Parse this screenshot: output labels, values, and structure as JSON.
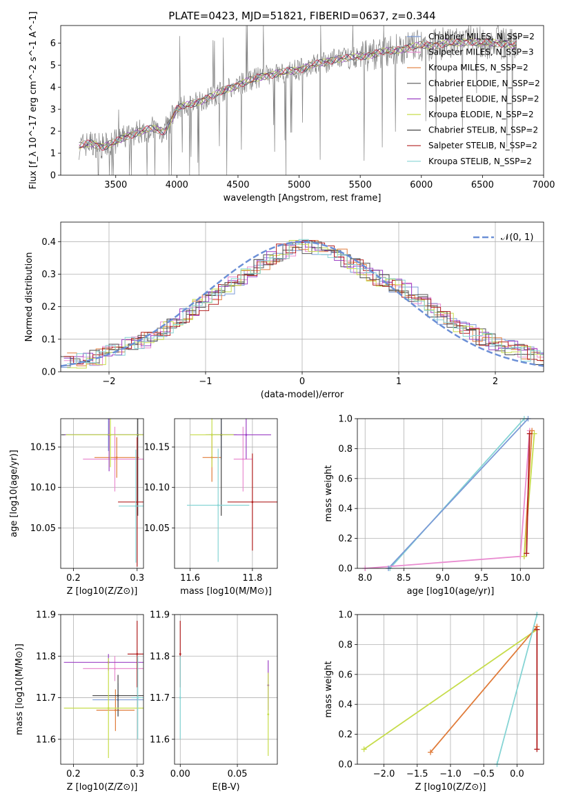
{
  "title": "PLATE=0423, MJD=51821, FIBERID=0637, z=0.344",
  "colors": {
    "chabrier_miles": "#7a9ad6",
    "salpeter_miles": "#e98bd0",
    "kroupa_miles": "#e07b39",
    "chabrier_elodie": "#555555",
    "salpeter_elodie": "#9b3fc4",
    "kroupa_elodie": "#c6dc4a",
    "chabrier_stelib": "#444444",
    "salpeter_stelib": "#b22020",
    "kroupa_stelib": "#85d4d4",
    "gauss": "#6b8fd6",
    "data": "#808080"
  },
  "chart_data": [
    {
      "type": "line",
      "xlabel": "wavelength [Angstrom, rest frame]",
      "ylabel": "Flux [f_λ 10^-17 erg cm^-2 s^-1 A^-1]",
      "xlim": [
        3050,
        7000
      ],
      "ylim": [
        0,
        6.8
      ],
      "xticks": [
        "3500",
        "4000",
        "4500",
        "5000",
        "5500",
        "6000",
        "6500",
        "7000"
      ],
      "yticks": [
        "0",
        "1",
        "2",
        "3",
        "4",
        "5",
        "6"
      ],
      "legend_position": "top-right",
      "legend": [
        {
          "label": "Chabrier MILES, N_SSP=2",
          "color": "#7a9ad6"
        },
        {
          "label": "Salpeter MILES, N_SSP=3",
          "color": "#e98bd0"
        },
        {
          "label": "Kroupa MILES, N_SSP=2",
          "color": "#e07b39"
        },
        {
          "label": "Chabrier ELODIE, N_SSP=2",
          "color": "#555555"
        },
        {
          "label": "Salpeter ELODIE, N_SSP=2",
          "color": "#9b3fc4"
        },
        {
          "label": "Kroupa ELODIE, N_SSP=2",
          "color": "#c6dc4a"
        },
        {
          "label": "Chabrier STELIB, N_SSP=2",
          "color": "#444444"
        },
        {
          "label": "Salpeter STELIB, N_SSP=2",
          "color": "#b22020"
        },
        {
          "label": "Kroupa STELIB, N_SSP=2",
          "color": "#85d4d4"
        }
      ],
      "model_continuum": {
        "x": [
          3200,
          3250,
          3300,
          3400,
          3500,
          3600,
          3700,
          3800,
          3900,
          4000,
          4100,
          4200,
          4300,
          4400,
          4500,
          4600,
          4700,
          4800,
          4900,
          5000,
          5100,
          5200,
          5300,
          5400,
          5500,
          5600,
          5700,
          5800,
          5900,
          6000,
          6100,
          6200,
          6300,
          6400,
          6500,
          6600,
          6700,
          6750
        ],
        "y": [
          1.3,
          1.4,
          1.45,
          1.3,
          1.5,
          1.8,
          2.0,
          2.1,
          2.0,
          3.0,
          3.2,
          3.4,
          3.6,
          3.9,
          4.1,
          4.3,
          4.5,
          4.6,
          4.7,
          4.8,
          5.0,
          5.1,
          5.3,
          5.3,
          5.4,
          5.5,
          5.6,
          5.7,
          5.8,
          5.9,
          5.9,
          6.0,
          6.0,
          6.1,
          6.0,
          6.0,
          6.0,
          5.9
        ]
      },
      "grid": false
    },
    {
      "type": "line",
      "xlabel": "(data-model)/error",
      "ylabel": "Normed distribution",
      "xlim": [
        -2.5,
        2.5
      ],
      "ylim": [
        0,
        0.46
      ],
      "xticks": [
        "−2",
        "−1",
        "0",
        "1",
        "2"
      ],
      "yticks": [
        "0.0",
        "0.1",
        "0.2",
        "0.3",
        "0.4"
      ],
      "legend_position": "top-right",
      "legend": [
        {
          "label": "𝒩(0, 1)",
          "color": "#6b8fd6",
          "style": "dashed"
        }
      ],
      "histogram_envelope": {
        "x": [
          -2.5,
          -2.3,
          -2.1,
          -1.9,
          -1.7,
          -1.5,
          -1.3,
          -1.1,
          -0.9,
          -0.7,
          -0.5,
          -0.3,
          -0.1,
          0.1,
          0.3,
          0.5,
          0.7,
          0.9,
          1.1,
          1.3,
          1.5,
          1.7,
          1.9,
          2.1,
          2.3,
          2.5
        ],
        "y": [
          0.04,
          0.035,
          0.045,
          0.07,
          0.09,
          0.11,
          0.16,
          0.2,
          0.23,
          0.27,
          0.31,
          0.36,
          0.38,
          0.39,
          0.37,
          0.34,
          0.3,
          0.27,
          0.25,
          0.2,
          0.16,
          0.13,
          0.1,
          0.08,
          0.055,
          0.04
        ]
      },
      "grid": true
    },
    {
      "type": "scatter",
      "xlabel": "Z [log10(Z/Z⊙)]",
      "ylabel": "age  [log10(age/yr)]",
      "xlim": [
        0.18,
        0.31
      ],
      "ylim": [
        10.0,
        10.185
      ],
      "xticks": [
        "0.2",
        "0.3"
      ],
      "yticks": [
        "10.05",
        "10.10",
        "10.15"
      ],
      "points": [
        {
          "x": 0.255,
          "y": 10.165,
          "xerr": 0.07,
          "yerr": 0.02,
          "color": "#7a9ad6"
        },
        {
          "x": 0.265,
          "y": 10.135,
          "xerr": 0.05,
          "yerr": 0.04,
          "color": "#e98bd0"
        },
        {
          "x": 0.268,
          "y": 10.137,
          "xerr": 0.035,
          "yerr": 0.025,
          "color": "#e07b39"
        },
        {
          "x": 0.301,
          "y": 10.165,
          "xerr": 0.12,
          "yerr": 0.1,
          "color": "#444444"
        },
        {
          "x": 0.256,
          "y": 10.165,
          "xerr": 0.07,
          "yerr": 0.045,
          "color": "#9b3fc4"
        },
        {
          "x": 0.258,
          "y": 10.165,
          "xerr": 0.07,
          "yerr": 0.04,
          "color": "#c6dc4a"
        },
        {
          "x": 0.3,
          "y": 10.082,
          "xerr": 0.03,
          "yerr": 0.08,
          "color": "#b22020"
        },
        {
          "x": 0.298,
          "y": 10.077,
          "xerr": 0.027,
          "yerr": 0.07,
          "color": "#85d4d4"
        }
      ],
      "grid": true
    },
    {
      "type": "scatter",
      "xlabel": "mass [log10(M/M⊙)]",
      "ylabel": "",
      "xlim": [
        11.55,
        11.88
      ],
      "ylim": [
        10.0,
        10.185
      ],
      "xticks": [
        "11.6",
        "11.8"
      ],
      "yticks": [
        "10.05",
        "10.10",
        "10.15"
      ],
      "points": [
        {
          "x": 11.7,
          "y": 10.165,
          "xerr": 0.04,
          "yerr": 0.03,
          "color": "#7a9ad6"
        },
        {
          "x": 11.77,
          "y": 10.135,
          "xerr": 0.03,
          "yerr": 0.04,
          "color": "#e98bd0"
        },
        {
          "x": 11.67,
          "y": 10.137,
          "xerr": 0.03,
          "yerr": 0.03,
          "color": "#e07b39"
        },
        {
          "x": 11.7,
          "y": 10.165,
          "xerr": 0.05,
          "yerr": 0.1,
          "color": "#444444"
        },
        {
          "x": 11.78,
          "y": 10.165,
          "xerr": 0.08,
          "yerr": 0.03,
          "color": "#9b3fc4"
        },
        {
          "x": 11.67,
          "y": 10.165,
          "xerr": 0.07,
          "yerr": 0.04,
          "color": "#c6dc4a"
        },
        {
          "x": 11.8,
          "y": 10.082,
          "xerr": 0.08,
          "yerr": 0.06,
          "color": "#b22020"
        },
        {
          "x": 11.69,
          "y": 10.078,
          "xerr": 0.1,
          "yerr": 0.07,
          "color": "#85d4d4"
        }
      ],
      "grid": true
    },
    {
      "type": "line",
      "xlabel": "age  [log10(age/yr)]",
      "ylabel": "mass weight",
      "xlim": [
        7.9,
        10.3
      ],
      "ylim": [
        0,
        1.0
      ],
      "xticks": [
        "8.0",
        "8.5",
        "9.0",
        "9.5",
        "10.0"
      ],
      "yticks": [
        "0.0",
        "0.2",
        "0.4",
        "0.6",
        "0.8",
        "1.0"
      ],
      "series": [
        {
          "color": "#85d4d4",
          "x": [
            8.32,
            10.05
          ],
          "y": [
            0.0,
            1.0
          ]
        },
        {
          "color": "#7a9ad6",
          "x": [
            8.3,
            10.1
          ],
          "y": [
            0.0,
            1.0
          ]
        },
        {
          "color": "#e98bd0",
          "x": [
            8.0,
            10.0,
            10.12
          ],
          "y": [
            0.0,
            0.08,
            0.92
          ]
        },
        {
          "color": "#e07b39",
          "x": [
            10.05,
            10.15
          ],
          "y": [
            0.08,
            0.92
          ]
        },
        {
          "color": "#c6dc4a",
          "x": [
            10.05,
            10.18
          ],
          "y": [
            0.08,
            0.9
          ]
        },
        {
          "color": "#b22020",
          "x": [
            10.08,
            10.12
          ],
          "y": [
            0.1,
            0.9
          ]
        }
      ],
      "grid": true
    },
    {
      "type": "scatter",
      "xlabel": "Z [log10(Z/Z⊙)]",
      "ylabel": "mass [log10(M/M⊙)]",
      "xlim": [
        0.18,
        0.31
      ],
      "ylim": [
        11.54,
        11.9
      ],
      "xticks": [
        "0.2",
        "0.3"
      ],
      "yticks": [
        "11.6",
        "11.7",
        "11.8",
        "11.9"
      ],
      "points": [
        {
          "x": 0.27,
          "y": 11.695,
          "xerr": 0.04,
          "yerr": 0.04,
          "color": "#7a9ad6"
        },
        {
          "x": 0.265,
          "y": 11.77,
          "xerr": 0.05,
          "yerr": 0.03,
          "color": "#e98bd0"
        },
        {
          "x": 0.266,
          "y": 11.67,
          "xerr": 0.03,
          "yerr": 0.05,
          "color": "#e07b39"
        },
        {
          "x": 0.27,
          "y": 11.705,
          "xerr": 0.04,
          "yerr": 0.05,
          "color": "#444444"
        },
        {
          "x": 0.255,
          "y": 11.785,
          "xerr": 0.07,
          "yerr": 0.02,
          "color": "#9b3fc4"
        },
        {
          "x": 0.255,
          "y": 11.675,
          "xerr": 0.07,
          "yerr": 0.12,
          "color": "#c6dc4a"
        },
        {
          "x": 0.3,
          "y": 11.805,
          "xerr": 0.015,
          "yerr": 0.08,
          "color": "#b22020"
        },
        {
          "x": 0.301,
          "y": 11.7,
          "xerr": 0.01,
          "yerr": 0.1,
          "color": "#85d4d4"
        }
      ],
      "grid": true
    },
    {
      "type": "scatter",
      "xlabel": "E(B-V)",
      "ylabel": "",
      "xlim": [
        -0.005,
        0.085
      ],
      "ylim": [
        11.54,
        11.9
      ],
      "xticks": [
        "0.00",
        "0.05"
      ],
      "yticks": [
        "11.6",
        "11.7",
        "11.8",
        "11.9"
      ],
      "points": [
        {
          "x": 0.0,
          "y": 11.805,
          "yerr": 0.08,
          "color": "#b22020"
        },
        {
          "x": 0.0,
          "y": 11.7,
          "yerr": 0.1,
          "color": "#85d4d4"
        },
        {
          "x": 0.077,
          "y": 11.73,
          "yerr": 0.06,
          "color": "#9b3fc4"
        },
        {
          "x": 0.077,
          "y": 11.66,
          "yerr": 0.1,
          "color": "#c6dc4a"
        }
      ],
      "grid": true
    },
    {
      "type": "line",
      "xlabel": "Z [log10(Z/Z⊙)]",
      "ylabel": "mass weight",
      "xlim": [
        -2.4,
        0.4
      ],
      "ylim": [
        0,
        1.0
      ],
      "xticks": [
        "−2.0",
        "−1.5",
        "−1.0",
        "−0.5",
        "0.0"
      ],
      "yticks": [
        "0.0",
        "0.2",
        "0.4",
        "0.6",
        "0.8",
        "1.0"
      ],
      "series": [
        {
          "color": "#c6dc4a",
          "x": [
            -2.3,
            0.3
          ],
          "y": [
            0.1,
            0.9
          ]
        },
        {
          "color": "#e07b39",
          "x": [
            -1.3,
            0.3
          ],
          "y": [
            0.08,
            0.92
          ]
        },
        {
          "color": "#85d4d4",
          "x": [
            -0.3,
            0.3
          ],
          "y": [
            0.0,
            1.0
          ]
        },
        {
          "color": "#b22020",
          "x": [
            0.3,
            0.3
          ],
          "y": [
            0.1,
            0.9
          ]
        }
      ],
      "grid": true
    }
  ]
}
